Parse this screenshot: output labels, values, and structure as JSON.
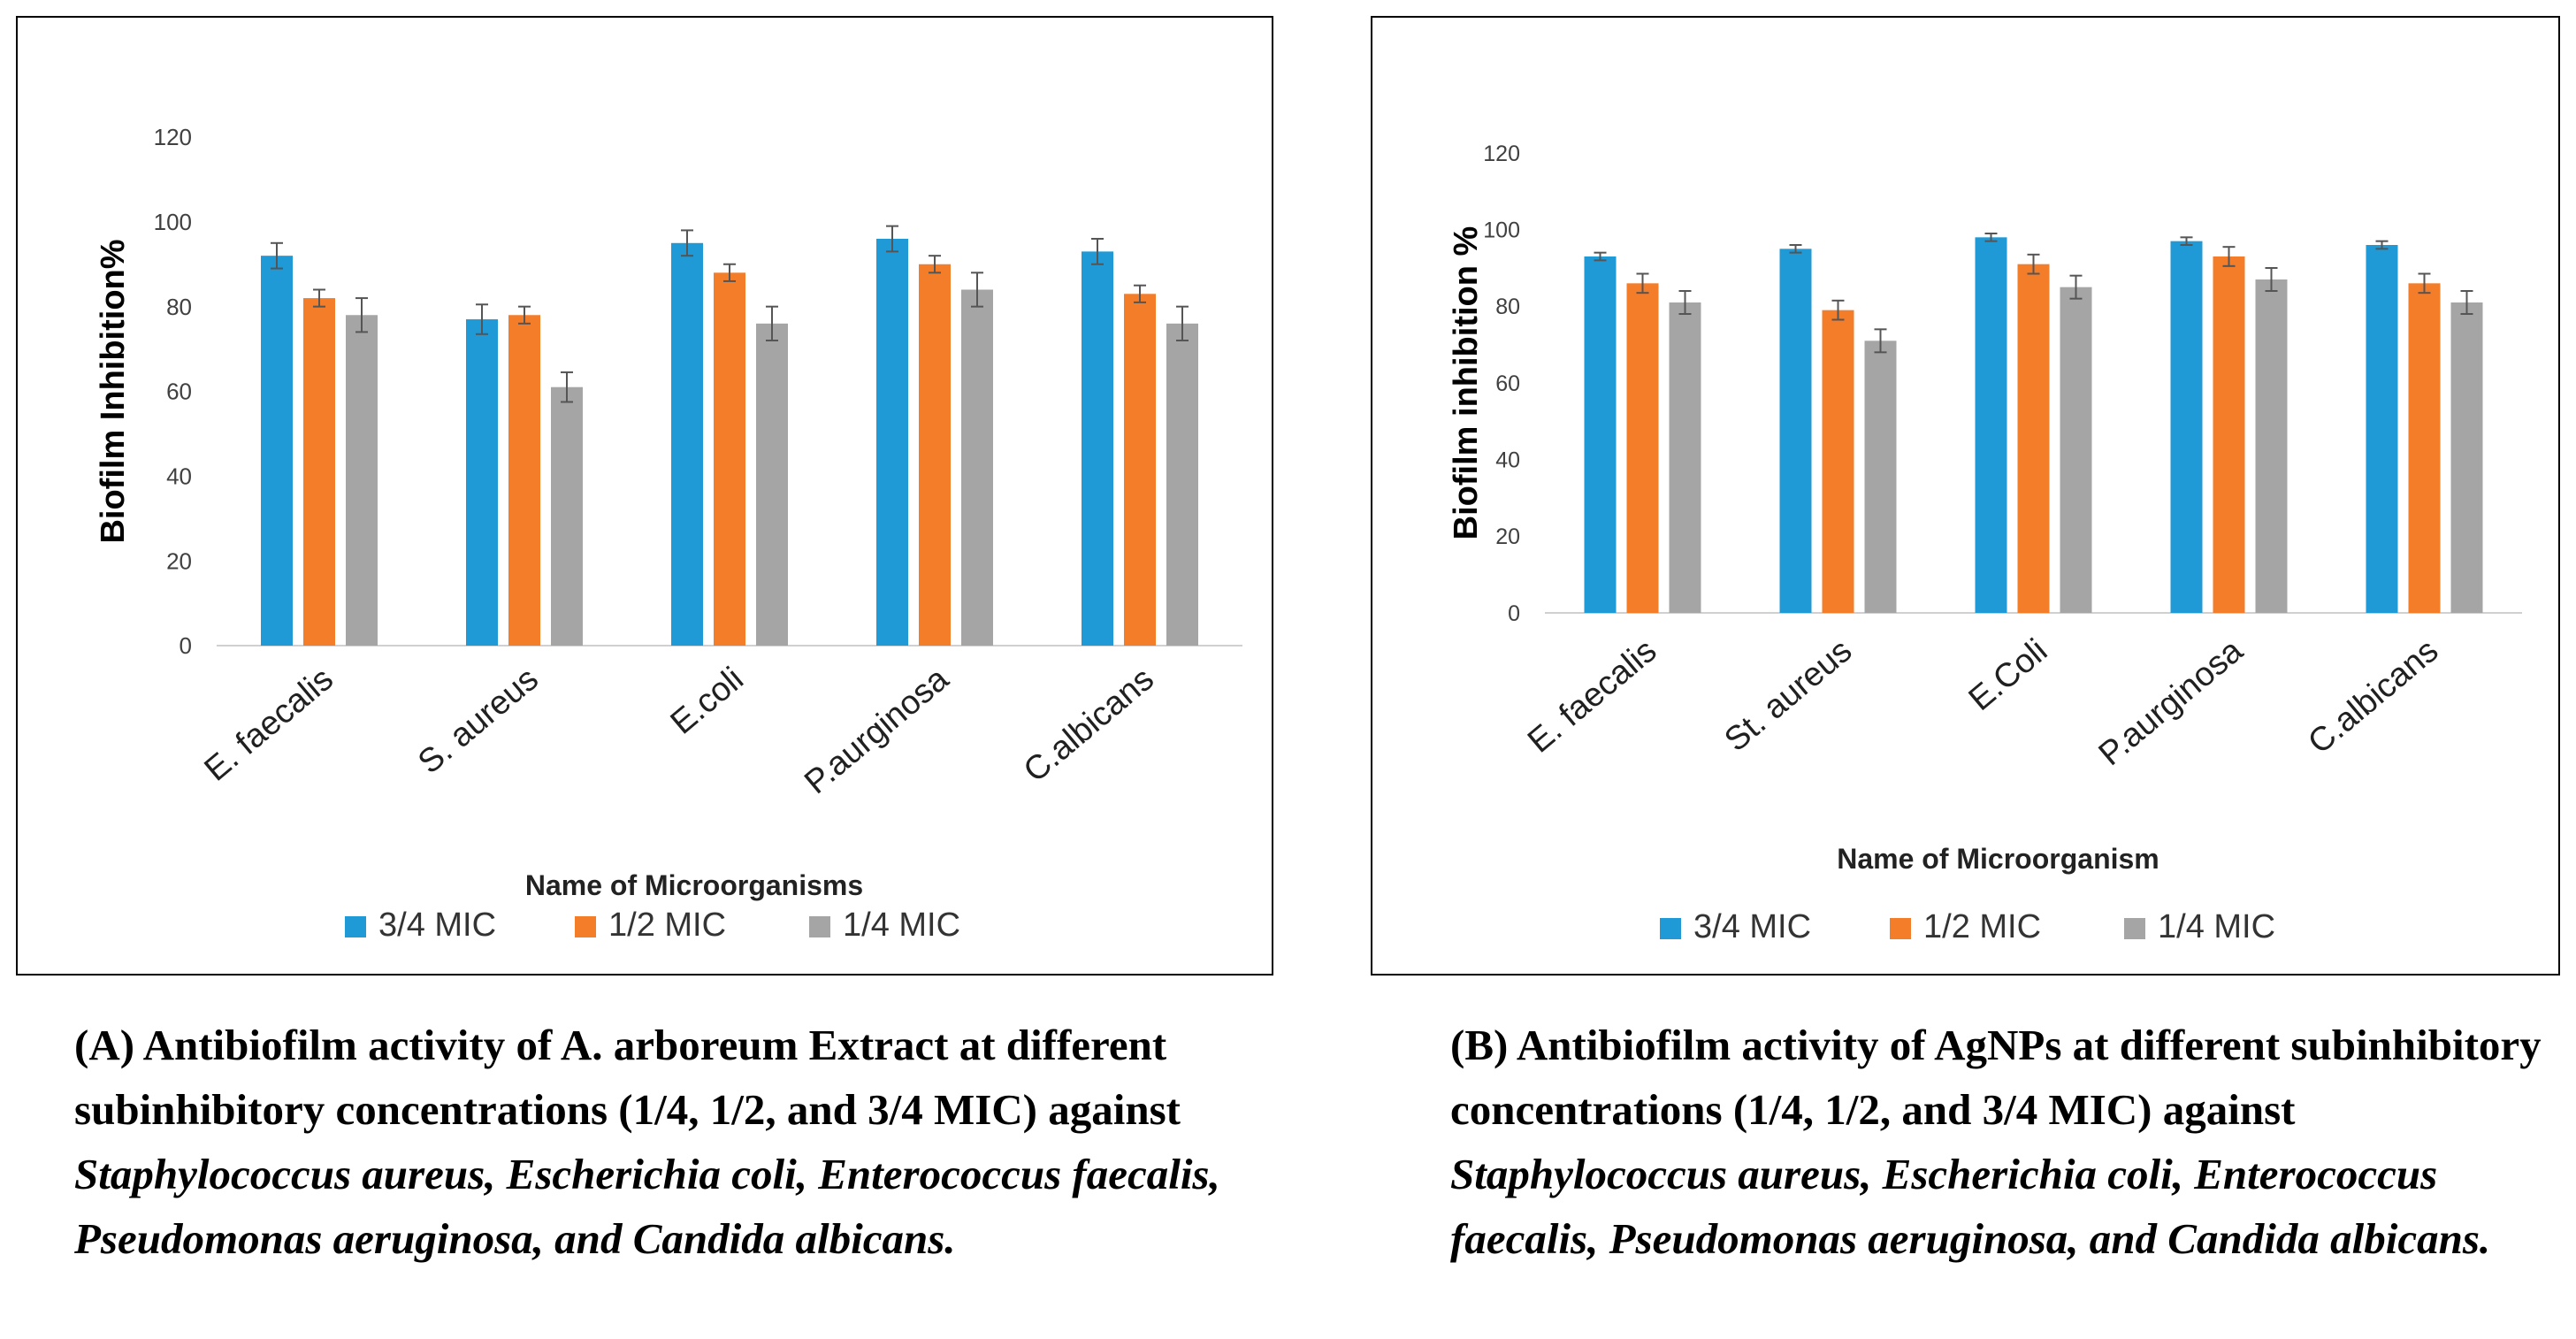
{
  "colors": {
    "series1": "#1f9ad6",
    "series2": "#f47d2a",
    "series3": "#a5a5a5",
    "axis": "#d0d0d0",
    "errorbar": "#555555"
  },
  "chart_data": [
    {
      "type": "bar",
      "panel": "A",
      "title": "",
      "xlabel": "Name of Microorganisms",
      "ylabel": "Biofilm Inhibition%",
      "ylim": [
        0,
        120
      ],
      "yticks": [
        0,
        20,
        40,
        60,
        80,
        100,
        120
      ],
      "categories": [
        "E. faecalis",
        "S. aureus",
        "E.coli",
        "P.aurginosa",
        "C.albicans"
      ],
      "series": [
        {
          "name": "3/4 MIC",
          "values": [
            92,
            77,
            95,
            96,
            93
          ],
          "errors": [
            3,
            3.5,
            3,
            3,
            3
          ]
        },
        {
          "name": "1/2 MIC",
          "values": [
            82,
            78,
            88,
            90,
            83
          ],
          "errors": [
            2,
            2,
            2,
            2,
            2
          ]
        },
        {
          "name": "1/4 MIC",
          "values": [
            78,
            61,
            76,
            84,
            76
          ],
          "errors": [
            4,
            3.5,
            4,
            4,
            4
          ]
        }
      ],
      "legend": "bottom"
    },
    {
      "type": "bar",
      "panel": "B",
      "title": "",
      "xlabel": "Name of Microorganism",
      "ylabel": "Biofilm inhibition %",
      "ylim": [
        0,
        120
      ],
      "yticks": [
        0,
        20,
        40,
        60,
        80,
        100,
        120
      ],
      "categories": [
        "E. faecalis",
        "St. aureus",
        "E.Coli",
        "P.aurginosa",
        "C.albicans"
      ],
      "series": [
        {
          "name": "3/4 MIC",
          "values": [
            93,
            95,
            98,
            97,
            96
          ],
          "errors": [
            1,
            1,
            1,
            1,
            1
          ]
        },
        {
          "name": "1/2 MIC",
          "values": [
            86,
            79,
            91,
            93,
            86
          ],
          "errors": [
            2.5,
            2.5,
            2.5,
            2.5,
            2.5
          ]
        },
        {
          "name": "1/4 MIC",
          "values": [
            81,
            71,
            85,
            87,
            81
          ],
          "errors": [
            3,
            3,
            3,
            3,
            3
          ]
        }
      ],
      "legend": "bottom"
    }
  ],
  "captions": {
    "a": {
      "text1": "(A) Antibiofilm activity of A. arboreum Extract at different subinhibitory concentrations (1/4, 1/2, and 3/4 MIC) against ",
      "italic": "Staphylococcus aureus, Escherichia coli, Enterococcus faecalis, Pseudomonas aeruginosa, and Candida albicans."
    },
    "b": {
      "text1": "(B) Antibiofilm activity of AgNPs at different subinhibitory concentrations (1/4, 1/2, and 3/4 MIC) against ",
      "italic": "Staphylococcus aureus, Escherichia coli, Enterococcus faecalis, Pseudomonas aeruginosa, and Candida albicans."
    }
  }
}
